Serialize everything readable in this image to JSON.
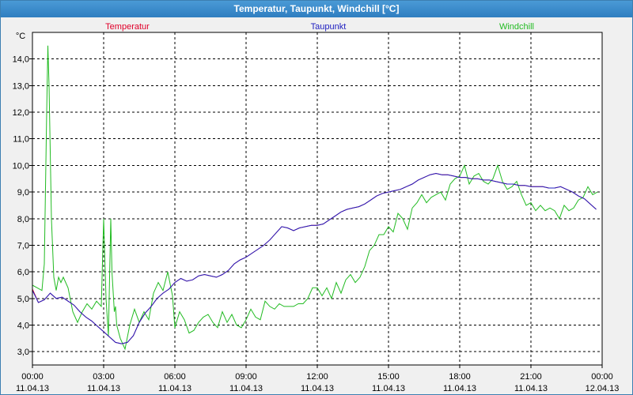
{
  "window": {
    "title": "Temperatur, Taupunkt, Windchill [°C]"
  },
  "colors": {
    "temperatur": "#e0002a",
    "taupunkt": "#2020c0",
    "windchill": "#22bb22",
    "grid": "#000000",
    "axis_text": "#000000"
  },
  "chart_data": {
    "type": "line",
    "title": "Temperatur, Taupunkt, Windchill [°C]",
    "ylabel": "°C",
    "xlabel": "",
    "ylim": [
      2.5,
      15.0
    ],
    "xlim_hours": [
      0,
      24
    ],
    "grid": true,
    "legend_placement": "top",
    "y_ticks": [
      {
        "value": 3.0,
        "label": "3,0"
      },
      {
        "value": 4.0,
        "label": "4,0"
      },
      {
        "value": 5.0,
        "label": "5,0"
      },
      {
        "value": 6.0,
        "label": "6,0"
      },
      {
        "value": 7.0,
        "label": "7,0"
      },
      {
        "value": 8.0,
        "label": "8,0"
      },
      {
        "value": 9.0,
        "label": "9,0"
      },
      {
        "value": 10.0,
        "label": "10,0"
      },
      {
        "value": 11.0,
        "label": "11,0"
      },
      {
        "value": 12.0,
        "label": "12,0"
      },
      {
        "value": 13.0,
        "label": "13,0"
      },
      {
        "value": 14.0,
        "label": "14,0"
      }
    ],
    "x_ticks": [
      {
        "hour": 0,
        "time": "00:00",
        "date": "11.04.13"
      },
      {
        "hour": 3,
        "time": "03:00",
        "date": "11.04.13"
      },
      {
        "hour": 6,
        "time": "06:00",
        "date": "11.04.13"
      },
      {
        "hour": 9,
        "time": "09:00",
        "date": "11.04.13"
      },
      {
        "hour": 12,
        "time": "12:00",
        "date": "11.04.13"
      },
      {
        "hour": 15,
        "time": "15:00",
        "date": "11.04.13"
      },
      {
        "hour": 18,
        "time": "18:00",
        "date": "11.04.13"
      },
      {
        "hour": 21,
        "time": "21:00",
        "date": "11.04.13"
      },
      {
        "hour": 24,
        "time": "00:00",
        "date": "12.04.13"
      }
    ],
    "series": [
      {
        "name": "Temperatur",
        "color_key": "temperatur",
        "x": [
          0,
          0.25,
          0.5,
          0.75,
          1,
          1.25,
          1.5,
          1.75,
          2,
          2.25,
          2.5,
          2.75,
          3,
          3.25,
          3.5,
          3.75,
          4,
          4.25,
          4.5,
          4.75,
          5,
          5.25,
          5.5,
          5.75,
          6,
          6.25,
          6.5,
          6.75,
          7,
          7.25,
          7.5,
          7.75,
          8,
          8.25,
          8.5,
          8.75,
          9,
          9.25,
          9.5,
          9.75,
          10,
          10.25,
          10.5,
          10.75,
          11,
          11.25,
          11.5,
          11.75,
          12,
          12.25,
          12.5,
          12.75,
          13,
          13.25,
          13.5,
          13.75,
          14,
          14.25,
          14.5,
          14.75,
          15,
          15.25,
          15.5,
          15.75,
          16,
          16.25,
          16.5,
          16.75,
          17,
          17.25,
          17.5,
          17.75,
          18,
          18.25,
          18.5,
          18.75,
          19,
          19.25,
          19.5,
          19.75,
          20,
          20.25,
          20.5,
          20.75,
          21,
          21.25,
          21.5,
          21.75,
          22,
          22.25,
          22.5,
          22.75,
          23,
          23.25,
          23.5,
          23.75
        ],
        "values": [
          5.35,
          4.85,
          4.95,
          5.2,
          5.0,
          5.05,
          4.9,
          4.75,
          4.5,
          4.3,
          4.15,
          3.95,
          3.75,
          3.55,
          3.35,
          3.3,
          3.35,
          3.6,
          4.1,
          4.45,
          4.7,
          5.0,
          5.2,
          5.35,
          5.6,
          5.75,
          5.65,
          5.7,
          5.85,
          5.9,
          5.85,
          5.8,
          5.9,
          6.05,
          6.3,
          6.45,
          6.55,
          6.7,
          6.85,
          7.0,
          7.2,
          7.45,
          7.7,
          7.65,
          7.55,
          7.65,
          7.7,
          7.75,
          7.75,
          7.8,
          7.95,
          8.1,
          8.25,
          8.35,
          8.4,
          8.45,
          8.55,
          8.7,
          8.85,
          8.95,
          9.0,
          9.05,
          9.1,
          9.2,
          9.3,
          9.45,
          9.55,
          9.65,
          9.7,
          9.65,
          9.65,
          9.6,
          9.55,
          9.55,
          9.5,
          9.5,
          9.45,
          9.45,
          9.4,
          9.35,
          9.3,
          9.3,
          9.25,
          9.25,
          9.2,
          9.2,
          9.2,
          9.15,
          9.15,
          9.2,
          9.1,
          9.0,
          8.85,
          8.75,
          8.55,
          8.35
        ]
      },
      {
        "name": "Taupunkt",
        "color_key": "taupunkt",
        "x": [
          0,
          0.25,
          0.5,
          0.75,
          1,
          1.25,
          1.5,
          1.75,
          2,
          2.25,
          2.5,
          2.75,
          3,
          3.25,
          3.5,
          3.75,
          4,
          4.25,
          4.5,
          4.75,
          5,
          5.25,
          5.5,
          5.75,
          6,
          6.25,
          6.5,
          6.75,
          7,
          7.25,
          7.5,
          7.75,
          8,
          8.25,
          8.5,
          8.75,
          9,
          9.25,
          9.5,
          9.75,
          10,
          10.25,
          10.5,
          10.75,
          11,
          11.25,
          11.5,
          11.75,
          12,
          12.25,
          12.5,
          12.75,
          13,
          13.25,
          13.5,
          13.75,
          14,
          14.25,
          14.5,
          14.75,
          15,
          15.25,
          15.5,
          15.75,
          16,
          16.25,
          16.5,
          16.75,
          17,
          17.25,
          17.5,
          17.75,
          18,
          18.25,
          18.5,
          18.75,
          19,
          19.25,
          19.5,
          19.75,
          20,
          20.25,
          20.5,
          20.75,
          21,
          21.25,
          21.5,
          21.75,
          22,
          22.25,
          22.5,
          22.75,
          23,
          23.25,
          23.5,
          23.75
        ],
        "values": [
          5.3,
          4.85,
          4.95,
          5.2,
          5.0,
          5.05,
          4.9,
          4.75,
          4.5,
          4.3,
          4.15,
          3.95,
          3.75,
          3.55,
          3.35,
          3.3,
          3.35,
          3.6,
          4.1,
          4.45,
          4.7,
          5.0,
          5.2,
          5.35,
          5.6,
          5.75,
          5.65,
          5.7,
          5.85,
          5.9,
          5.85,
          5.8,
          5.9,
          6.05,
          6.3,
          6.45,
          6.55,
          6.7,
          6.85,
          7.0,
          7.2,
          7.45,
          7.7,
          7.65,
          7.55,
          7.65,
          7.7,
          7.75,
          7.75,
          7.8,
          7.95,
          8.1,
          8.25,
          8.35,
          8.4,
          8.45,
          8.55,
          8.7,
          8.85,
          8.95,
          9.0,
          9.05,
          9.1,
          9.2,
          9.3,
          9.45,
          9.55,
          9.65,
          9.7,
          9.65,
          9.65,
          9.6,
          9.55,
          9.55,
          9.5,
          9.5,
          9.45,
          9.45,
          9.4,
          9.35,
          9.3,
          9.3,
          9.25,
          9.25,
          9.2,
          9.2,
          9.2,
          9.15,
          9.15,
          9.2,
          9.1,
          9.0,
          8.85,
          8.75,
          8.55,
          8.35
        ]
      },
      {
        "name": "Windchill",
        "color_key": "windchill",
        "x": [
          0,
          0.2,
          0.4,
          0.5,
          0.6,
          0.65,
          0.7,
          0.8,
          0.9,
          1.0,
          1.1,
          1.2,
          1.3,
          1.5,
          1.7,
          1.9,
          2.1,
          2.3,
          2.5,
          2.7,
          2.9,
          3.0,
          3.05,
          3.1,
          3.2,
          3.3,
          3.35,
          3.45,
          3.5,
          3.55,
          3.7,
          3.9,
          4.1,
          4.3,
          4.5,
          4.7,
          4.9,
          5.1,
          5.3,
          5.5,
          5.7,
          5.9,
          6.0,
          6.2,
          6.4,
          6.6,
          6.8,
          7.0,
          7.2,
          7.4,
          7.6,
          7.8,
          8.0,
          8.2,
          8.4,
          8.6,
          8.8,
          9.0,
          9.2,
          9.4,
          9.6,
          9.8,
          10.0,
          10.2,
          10.4,
          10.6,
          10.8,
          11.0,
          11.2,
          11.4,
          11.6,
          11.8,
          12.0,
          12.2,
          12.4,
          12.6,
          12.8,
          13.0,
          13.2,
          13.4,
          13.6,
          13.8,
          14.0,
          14.2,
          14.4,
          14.6,
          14.8,
          15.0,
          15.2,
          15.4,
          15.6,
          15.8,
          16.0,
          16.2,
          16.4,
          16.6,
          16.8,
          17.0,
          17.2,
          17.4,
          17.6,
          17.8,
          18.0,
          18.2,
          18.4,
          18.6,
          18.8,
          19.0,
          19.2,
          19.4,
          19.6,
          19.8,
          20.0,
          20.2,
          20.4,
          20.6,
          20.8,
          21.0,
          21.2,
          21.4,
          21.6,
          21.8,
          22.0,
          22.2,
          22.4,
          22.6,
          22.8,
          23.0,
          23.2,
          23.4,
          23.6,
          23.8
        ],
        "values": [
          5.5,
          5.4,
          5.3,
          6.3,
          12.0,
          14.5,
          13.0,
          8.0,
          5.8,
          5.3,
          5.8,
          5.6,
          5.8,
          5.4,
          4.5,
          4.1,
          4.5,
          4.8,
          4.6,
          4.9,
          4.7,
          8.0,
          6.5,
          5.0,
          3.6,
          8.0,
          6.0,
          4.5,
          4.7,
          4.0,
          3.5,
          3.1,
          4.0,
          4.6,
          4.1,
          4.5,
          4.2,
          5.2,
          5.6,
          5.3,
          6.0,
          5.1,
          3.9,
          4.5,
          4.2,
          3.7,
          3.8,
          4.1,
          4.3,
          4.4,
          4.1,
          3.9,
          4.5,
          4.1,
          4.4,
          4.0,
          3.9,
          4.2,
          4.6,
          4.3,
          4.2,
          4.9,
          4.7,
          4.6,
          4.8,
          4.7,
          4.7,
          4.7,
          4.8,
          4.8,
          5.0,
          5.4,
          5.4,
          5.1,
          5.4,
          5.0,
          5.6,
          5.2,
          5.7,
          5.9,
          5.6,
          5.8,
          6.2,
          6.8,
          7.0,
          7.4,
          7.4,
          7.7,
          7.5,
          8.2,
          8.0,
          7.6,
          8.4,
          8.6,
          8.9,
          8.6,
          8.8,
          8.9,
          9.0,
          8.7,
          9.3,
          9.5,
          9.6,
          10.0,
          9.3,
          9.6,
          9.7,
          9.4,
          9.3,
          9.5,
          10.0,
          9.4,
          9.1,
          9.2,
          9.4,
          8.9,
          8.5,
          8.6,
          8.3,
          8.5,
          8.3,
          8.4,
          8.3,
          8.0,
          8.5,
          8.3,
          8.4,
          8.7,
          8.8,
          9.2,
          8.9,
          9.0
        ]
      }
    ]
  }
}
